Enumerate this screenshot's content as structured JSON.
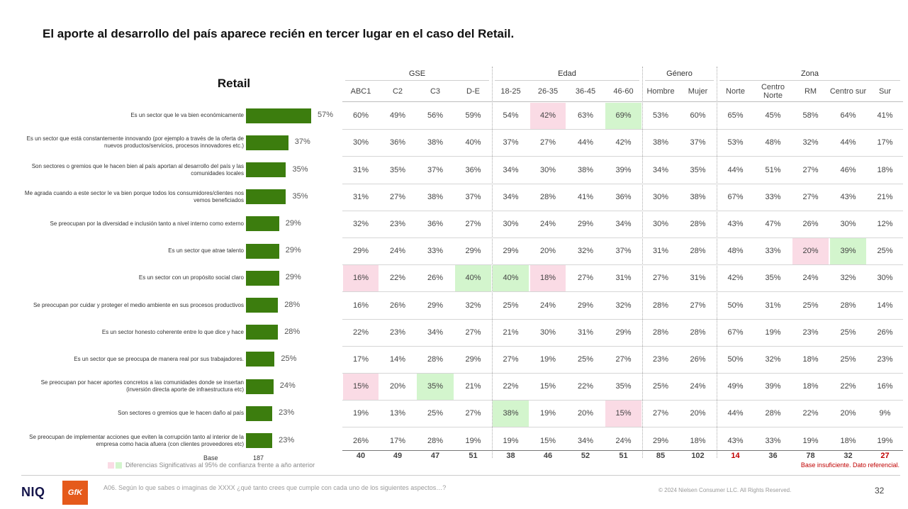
{
  "title": "El aporte al desarrollo del país aparece recién en tercer lugar en el caso del Retail.",
  "chart_data": {
    "type": "bar",
    "title": "Retail",
    "categories": [
      "Es un sector que le va bien económicamente",
      "Es un sector que está constantemente innovando (por ejemplo a través de la oferta de nuevos productos/servicios, procesos innovadores etc.)",
      "Son sectores o gremios que le hacen bien al país aportan al desarrollo del país y las comunidades locales",
      "Me agrada cuando a este sector le va bien porque todos los consumidores/clientes nos vemos beneficiados",
      "Se preocupan por la diversidad e inclusión tanto a nivel interno como externo",
      "Es un sector que atrae talento",
      "Es un sector con un propósito social claro",
      "Se preocupan por cuidar y proteger el medio ambiente en sus procesos productivos",
      "Es un sector honesto coherente entre lo que dice y hace",
      "Es un sector que se preocupa de manera real por sus trabajadores.",
      "Se preocupan por hacer aportes concretos a las comunidades donde se insertan (inversión directa aporte de infraestructura etc)",
      "Son sectores o gremios que le hacen daño al país",
      "Se preocupan de implementar acciones que eviten la corrupción tanto al interior de la empresa como hacia afuera (con clientes proveedores etc)"
    ],
    "values": [
      57,
      37,
      35,
      35,
      29,
      29,
      29,
      28,
      28,
      25,
      24,
      23,
      23
    ],
    "value_labels": [
      "57%",
      "37%",
      "35%",
      "35%",
      "29%",
      "29%",
      "29%",
      "28%",
      "28%",
      "25%",
      "24%",
      "23%",
      "23%"
    ],
    "base_label": "Base",
    "base_value": "187",
    "xlim": [
      0,
      100
    ],
    "bar_color": "#3c7d0e",
    "table": {
      "groups": [
        {
          "label": "GSE",
          "span": 4
        },
        {
          "label": "Edad",
          "span": 4
        },
        {
          "label": "Género",
          "span": 2
        },
        {
          "label": "Zona",
          "span": 5
        }
      ],
      "columns": [
        "ABC1",
        "C2",
        "C3",
        "D-E",
        "18-25",
        "26-35",
        "36-45",
        "46-60",
        "Hombre",
        "Mujer",
        "Norte",
        "Centro Norte",
        "RM",
        "Centro sur",
        "Sur"
      ],
      "rows": [
        [
          "60%",
          "49%",
          "56%",
          "59%",
          "54%",
          "42%",
          "63%",
          "69%",
          "53%",
          "60%",
          "65%",
          "45%",
          "58%",
          "64%",
          "41%"
        ],
        [
          "30%",
          "36%",
          "38%",
          "40%",
          "37%",
          "27%",
          "44%",
          "42%",
          "38%",
          "37%",
          "53%",
          "48%",
          "32%",
          "44%",
          "17%"
        ],
        [
          "31%",
          "35%",
          "37%",
          "36%",
          "34%",
          "30%",
          "38%",
          "39%",
          "34%",
          "35%",
          "44%",
          "51%",
          "27%",
          "46%",
          "18%"
        ],
        [
          "31%",
          "27%",
          "38%",
          "37%",
          "34%",
          "28%",
          "41%",
          "36%",
          "30%",
          "38%",
          "67%",
          "33%",
          "27%",
          "43%",
          "21%"
        ],
        [
          "32%",
          "23%",
          "36%",
          "27%",
          "30%",
          "24%",
          "29%",
          "34%",
          "30%",
          "28%",
          "43%",
          "47%",
          "26%",
          "30%",
          "12%"
        ],
        [
          "29%",
          "24%",
          "33%",
          "29%",
          "29%",
          "20%",
          "32%",
          "37%",
          "31%",
          "28%",
          "48%",
          "33%",
          "20%",
          "39%",
          "25%"
        ],
        [
          "16%",
          "22%",
          "26%",
          "40%",
          "40%",
          "18%",
          "27%",
          "31%",
          "27%",
          "31%",
          "42%",
          "35%",
          "24%",
          "32%",
          "30%"
        ],
        [
          "16%",
          "26%",
          "29%",
          "32%",
          "25%",
          "24%",
          "29%",
          "32%",
          "28%",
          "27%",
          "50%",
          "31%",
          "25%",
          "28%",
          "14%"
        ],
        [
          "22%",
          "23%",
          "34%",
          "27%",
          "21%",
          "30%",
          "31%",
          "29%",
          "28%",
          "28%",
          "67%",
          "19%",
          "23%",
          "25%",
          "26%"
        ],
        [
          "17%",
          "14%",
          "28%",
          "29%",
          "27%",
          "19%",
          "25%",
          "27%",
          "23%",
          "26%",
          "50%",
          "32%",
          "18%",
          "25%",
          "23%"
        ],
        [
          "15%",
          "20%",
          "35%",
          "21%",
          "22%",
          "15%",
          "22%",
          "35%",
          "25%",
          "24%",
          "49%",
          "39%",
          "18%",
          "22%",
          "16%"
        ],
        [
          "19%",
          "13%",
          "25%",
          "27%",
          "38%",
          "19%",
          "20%",
          "15%",
          "27%",
          "20%",
          "44%",
          "28%",
          "22%",
          "20%",
          "9%"
        ],
        [
          "26%",
          "17%",
          "28%",
          "19%",
          "19%",
          "15%",
          "34%",
          "24%",
          "29%",
          "18%",
          "43%",
          "33%",
          "19%",
          "18%",
          "19%"
        ]
      ],
      "highlights": [
        {
          "row": 0,
          "col": 5,
          "color": "pink"
        },
        {
          "row": 0,
          "col": 7,
          "color": "green"
        },
        {
          "row": 5,
          "col": 12,
          "color": "pink"
        },
        {
          "row": 5,
          "col": 13,
          "color": "green"
        },
        {
          "row": 6,
          "col": 0,
          "color": "pink"
        },
        {
          "row": 6,
          "col": 3,
          "color": "green"
        },
        {
          "row": 6,
          "col": 4,
          "color": "green"
        },
        {
          "row": 6,
          "col": 5,
          "color": "pink"
        },
        {
          "row": 10,
          "col": 0,
          "color": "pink"
        },
        {
          "row": 10,
          "col": 2,
          "color": "green"
        },
        {
          "row": 11,
          "col": 4,
          "color": "green"
        },
        {
          "row": 11,
          "col": 7,
          "color": "pink"
        }
      ],
      "base": [
        "40",
        "49",
        "47",
        "51",
        "38",
        "46",
        "52",
        "51",
        "85",
        "102",
        "14",
        "36",
        "78",
        "32",
        "27"
      ],
      "base_insufficient_cols": [
        10,
        14
      ]
    }
  },
  "legend": {
    "text": "Diferencias Significativas al 95% de confianza frente a año anterior",
    "colors": {
      "pink": "#fadbe5",
      "green": "#d3f5cd"
    }
  },
  "insufficient_note": "Base insuficiente. Dato referencial.",
  "footer": {
    "logo_niq": "NIQ",
    "logo_gfk": "GfK",
    "question": "A06. Según lo que sabes o imaginas de XXXX ¿qué tanto crees que cumple con cada uno de los siguientes aspectos…?",
    "copyright": "© 2024 Nielsen Consumer LLC. All Rights Reserved.",
    "page_number": "32"
  }
}
